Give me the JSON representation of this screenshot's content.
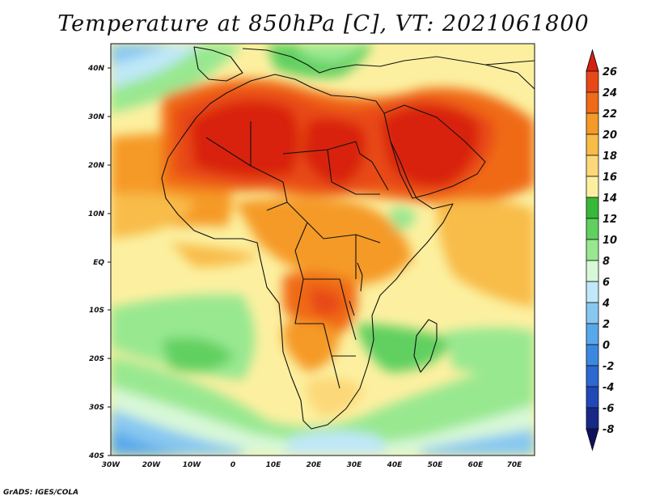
{
  "title": "Temperature at 850hPa [C], VT: 2021061800",
  "credit": "GrADS: IGES/COLA",
  "lat_labels": [
    "40N",
    "30N",
    "20N",
    "10N",
    "EQ",
    "10S",
    "20S",
    "30S",
    "40S"
  ],
  "lon_labels": [
    "30W",
    "20W",
    "10W",
    "0",
    "10E",
    "20E",
    "30E",
    "40E",
    "50E",
    "60E",
    "70E"
  ],
  "colorbar": {
    "labels": [
      "26",
      "24",
      "22",
      "20",
      "18",
      "16",
      "14",
      "12",
      "10",
      "8",
      "6",
      "4",
      "2",
      "0",
      "-2",
      "-4",
      "-6",
      "-8"
    ],
    "colors": [
      "#d82010",
      "#e84818",
      "#f06a18",
      "#f59a28",
      "#f8bc48",
      "#fcd878",
      "#fcf0a0",
      "#38b838",
      "#60d060",
      "#98e890",
      "#d8f8d8",
      "#c0e8f8",
      "#88c8f0",
      "#58a8ec",
      "#3c88e0",
      "#2c68d0",
      "#2048b8",
      "#182888",
      "#101060"
    ]
  }
}
